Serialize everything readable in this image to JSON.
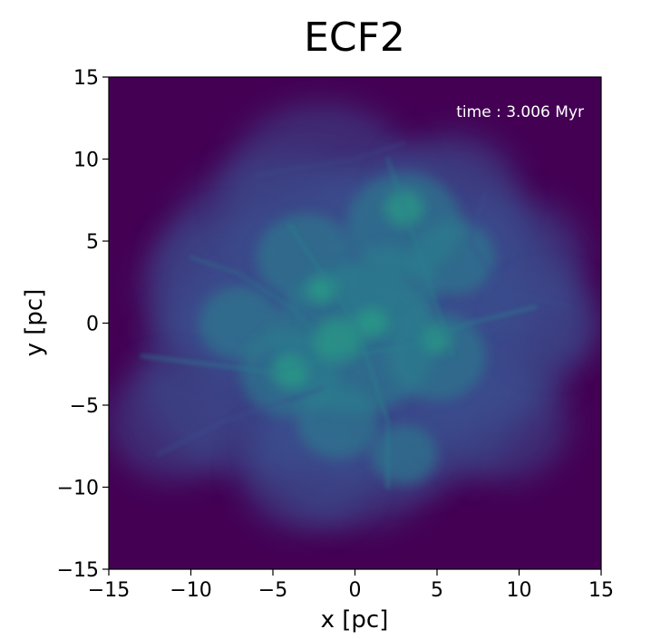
{
  "chart_data": {
    "type": "heatmap",
    "title": "ECF2",
    "xlabel": "x [pc]",
    "ylabel": "y [pc]",
    "xlim": [
      -15,
      15
    ],
    "ylim": [
      -15,
      15
    ],
    "x_ticks": [
      -15,
      -10,
      -5,
      0,
      5,
      10,
      15
    ],
    "y_ticks": [
      -15,
      -10,
      -5,
      0,
      5,
      10,
      15
    ],
    "x_tick_labels": [
      "−15",
      "−10",
      "−5",
      "0",
      "5",
      "10",
      "15"
    ],
    "y_tick_labels": [
      "−15",
      "−10",
      "−5",
      "0",
      "5",
      "10",
      "15"
    ],
    "annotation": "time : 3.006 Myr",
    "annotation_position": "top-right",
    "colormap": "viridis",
    "grid": false,
    "colors": {
      "background": "#440154",
      "low": "#3b4f8f",
      "mid": "#2a7f8e",
      "high": "#25ab82"
    }
  }
}
